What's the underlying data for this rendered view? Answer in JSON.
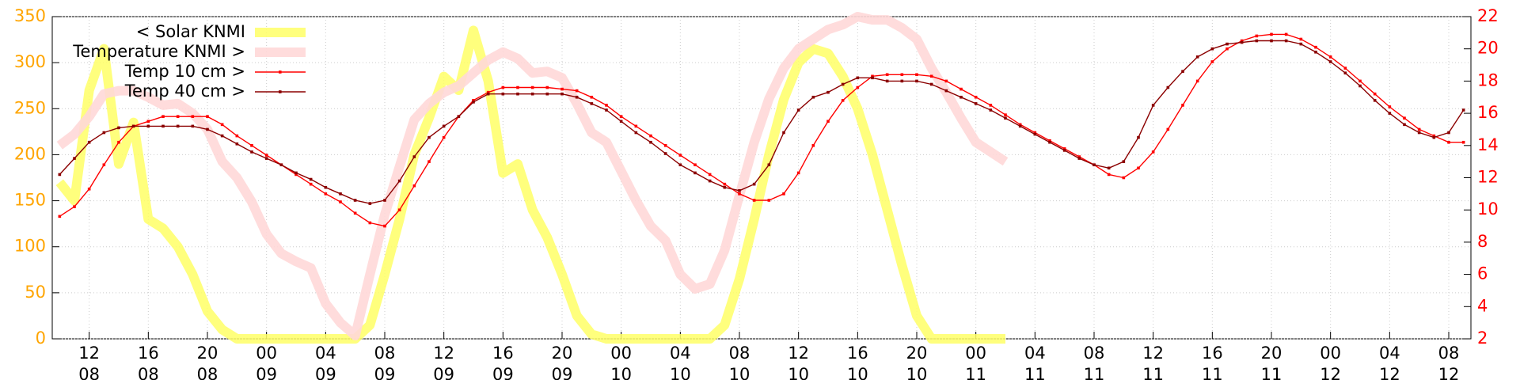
{
  "chart_data": {
    "type": "line",
    "x": [
      10,
      11,
      12,
      13,
      14,
      15,
      16,
      17,
      18,
      19,
      20,
      21,
      22,
      23,
      24,
      25,
      26,
      27,
      28,
      29,
      30,
      31,
      32,
      33,
      34,
      35,
      36,
      37,
      38,
      39,
      40,
      41,
      42,
      43,
      44,
      45,
      46,
      47,
      48,
      49,
      50,
      51,
      52,
      53,
      54,
      55,
      56,
      57,
      58,
      59,
      60,
      61,
      62,
      63,
      64,
      65,
      66,
      67,
      68,
      69,
      70,
      71,
      72,
      73,
      74,
      75,
      76,
      77,
      78,
      79,
      80,
      81,
      82,
      83,
      84,
      85,
      86,
      87,
      88,
      89,
      90,
      91,
      92,
      93,
      94,
      95,
      96,
      97,
      98,
      99,
      100,
      101,
      102,
      103,
      104,
      105
    ],
    "xlim": [
      9.5,
      105.5
    ],
    "xticks": [
      {
        "value": 12,
        "label": "12 08"
      },
      {
        "value": 16,
        "label": "16 08"
      },
      {
        "value": 20,
        "label": "20 08"
      },
      {
        "value": 24,
        "label": "00 09"
      },
      {
        "value": 28,
        "label": "04 09"
      },
      {
        "value": 32,
        "label": "08 09"
      },
      {
        "value": 36,
        "label": "12 09"
      },
      {
        "value": 40,
        "label": "16 09"
      },
      {
        "value": 44,
        "label": "20 09"
      },
      {
        "value": 48,
        "label": "00 10"
      },
      {
        "value": 52,
        "label": "04 10"
      },
      {
        "value": 56,
        "label": "08 10"
      },
      {
        "value": 60,
        "label": "12 10"
      },
      {
        "value": 64,
        "label": "16 10"
      },
      {
        "value": 68,
        "label": "20 10"
      },
      {
        "value": 72,
        "label": "00 11"
      },
      {
        "value": 76,
        "label": "04 11"
      },
      {
        "value": 80,
        "label": "08 11"
      },
      {
        "value": 84,
        "label": "12 11"
      },
      {
        "value": 88,
        "label": "16 11"
      },
      {
        "value": 92,
        "label": "20 11"
      },
      {
        "value": 96,
        "label": "00 12"
      },
      {
        "value": 100,
        "label": "04 12"
      },
      {
        "value": 104,
        "label": "08 12"
      }
    ],
    "ylim": [
      0,
      350
    ],
    "yticks": [
      0,
      50,
      100,
      150,
      200,
      250,
      300,
      350
    ],
    "y2lim": [
      2,
      22
    ],
    "y2ticks": [
      2,
      4,
      6,
      8,
      10,
      12,
      14,
      16,
      18,
      20,
      22
    ],
    "grid": true,
    "legend": "top left",
    "series": [
      {
        "name": "< Solar KNMI",
        "color": "#ffff66",
        "axis": "y",
        "values": [
          170,
          150,
          270,
          315,
          190,
          235,
          130,
          120,
          100,
          70,
          30,
          10,
          0,
          0,
          0,
          0,
          0,
          0,
          0,
          0,
          0,
          15,
          70,
          130,
          200,
          240,
          285,
          270,
          335,
          280,
          180,
          190,
          140,
          110,
          70,
          25,
          5,
          0,
          0,
          0,
          0,
          0,
          0,
          0,
          0,
          15,
          65,
          130,
          200,
          260,
          300,
          315,
          310,
          285,
          250,
          200,
          140,
          80,
          25,
          0,
          0,
          0,
          0,
          0,
          0,
          null,
          null,
          null,
          null,
          null,
          null,
          null,
          null,
          null,
          null,
          null,
          null,
          null,
          null,
          null,
          null,
          null,
          null,
          null,
          null,
          null,
          null,
          null,
          null,
          null,
          null,
          null,
          null,
          null,
          null,
          null
        ]
      },
      {
        "name": "Temperature KNMI >",
        "color": "#ffd8d8",
        "axis": "y2",
        "values": [
          14,
          14.7,
          15.8,
          17.2,
          17.4,
          17.4,
          17,
          16.5,
          16.6,
          16,
          15,
          13,
          12,
          10.5,
          8.5,
          7.3,
          6.8,
          6.4,
          4.2,
          3,
          2.2,
          6,
          9.7,
          12.7,
          15.6,
          16.6,
          17.3,
          17.7,
          18.5,
          19.3,
          19.8,
          19.4,
          18.5,
          18.6,
          18.2,
          16.6,
          14.8,
          14.2,
          12.4,
          10.6,
          9,
          8.1,
          6,
          5.1,
          5.4,
          7.5,
          10.9,
          14.2,
          16.9,
          18.8,
          20,
          20.6,
          21.2,
          21.5,
          22,
          21.8,
          21.8,
          21.3,
          20.6,
          18.8,
          17.3,
          15.7,
          14.2,
          13.6,
          13,
          null,
          null,
          null,
          null,
          null,
          null,
          null,
          null,
          null,
          null,
          null,
          null,
          null,
          null,
          null,
          null,
          null,
          null,
          null,
          null,
          null,
          null,
          null,
          null,
          null,
          null,
          null,
          null,
          null,
          null,
          null
        ]
      },
      {
        "name": "Temp 10 cm >",
        "color": "#ff0000",
        "axis": "y2",
        "values": [
          9.6,
          10.2,
          11.3,
          12.8,
          14.2,
          15.2,
          15.5,
          15.8,
          15.8,
          15.8,
          15.8,
          15.3,
          14.6,
          14,
          13.4,
          12.8,
          12.2,
          11.6,
          11,
          10.5,
          9.8,
          9.2,
          9.0,
          10,
          11.5,
          13,
          14.5,
          15.8,
          16.8,
          17.3,
          17.6,
          17.6,
          17.6,
          17.6,
          17.5,
          17.4,
          17.0,
          16.5,
          15.8,
          15.2,
          14.6,
          14.0,
          13.4,
          12.8,
          12.2,
          11.6,
          11.0,
          10.6,
          10.6,
          11.0,
          12.3,
          14,
          15.5,
          16.8,
          17.6,
          18.3,
          18.4,
          18.4,
          18.4,
          18.3,
          18.0,
          17.5,
          17.0,
          16.5,
          15.9,
          15.3,
          14.8,
          14.3,
          13.8,
          13.3,
          12.8,
          12.2,
          12.0,
          12.6,
          13.6,
          15.0,
          16.5,
          18.0,
          19.2,
          20.0,
          20.5,
          20.8,
          20.9,
          20.9,
          20.6,
          20.1,
          19.5,
          18.8,
          18.0,
          17.2,
          16.4,
          15.7,
          15.0,
          14.6,
          14.2,
          14.2
        ]
      },
      {
        "name": "Temp 40 cm >",
        "color": "#8b0000",
        "axis": "y2",
        "values": [
          12.2,
          13.2,
          14.2,
          14.8,
          15.1,
          15.2,
          15.2,
          15.2,
          15.2,
          15.2,
          15.0,
          14.6,
          14.1,
          13.6,
          13.2,
          12.8,
          12.3,
          11.9,
          11.4,
          11.0,
          10.6,
          10.4,
          10.6,
          11.8,
          13.3,
          14.5,
          15.2,
          15.8,
          16.7,
          17.2,
          17.2,
          17.2,
          17.2,
          17.2,
          17.2,
          17.0,
          16.6,
          16.2,
          15.5,
          14.8,
          14.2,
          13.5,
          12.8,
          12.3,
          11.8,
          11.4,
          11.2,
          11.6,
          12.8,
          14.8,
          16.2,
          17,
          17.3,
          17.8,
          18.2,
          18.2,
          18.0,
          18.0,
          18.0,
          17.8,
          17.4,
          17.0,
          16.6,
          16.2,
          15.7,
          15.2,
          14.7,
          14.2,
          13.7,
          13.2,
          12.8,
          12.6,
          13.0,
          14.5,
          16.5,
          17.6,
          18.6,
          19.5,
          20.0,
          20.3,
          20.4,
          20.5,
          20.5,
          20.5,
          20.3,
          19.8,
          19.2,
          18.5,
          17.7,
          16.8,
          16.0,
          15.3,
          14.8,
          14.5,
          14.8,
          16.2
        ]
      }
    ]
  }
}
